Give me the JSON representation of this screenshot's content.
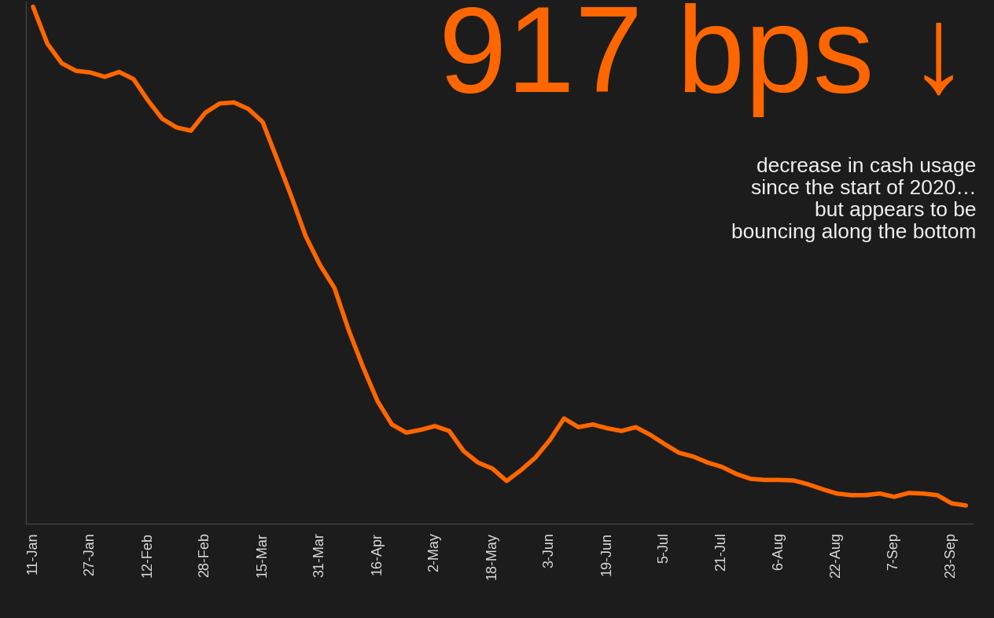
{
  "chart_data": {
    "type": "line",
    "title": "917 bps ↓",
    "annotation": "decrease in cash usage\nsince the start of 2020…\nbut appears to be\nbouncing along the bottom",
    "categories": [
      "11-Jan",
      null,
      null,
      null,
      "27-Jan",
      null,
      null,
      null,
      "12-Feb",
      null,
      null,
      null,
      "28-Feb",
      null,
      null,
      null,
      "15-Mar",
      null,
      null,
      null,
      "31-Mar",
      null,
      null,
      null,
      "16-Apr",
      null,
      null,
      null,
      "2-May",
      null,
      null,
      null,
      "18-May",
      null,
      null,
      null,
      "3-Jun",
      null,
      null,
      null,
      "19-Jun",
      null,
      null,
      null,
      "5-Jul",
      null,
      null,
      null,
      "21-Jul",
      null,
      null,
      null,
      "6-Aug",
      null,
      null,
      null,
      "22-Aug",
      null,
      null,
      null,
      "7-Sep",
      null,
      null,
      null,
      "23-Sep",
      null
    ],
    "values": [
      0,
      -68,
      -104,
      -118,
      -121,
      -129,
      -120,
      -133,
      -172,
      -206,
      -222,
      -228,
      -195,
      -178,
      -176,
      -188,
      -212,
      -280,
      -349,
      -422,
      -475,
      -517,
      -595,
      -663,
      -725,
      -768,
      -783,
      -778,
      -771,
      -780,
      -817,
      -838,
      -849,
      -872,
      -852,
      -829,
      -797,
      -757,
      -773,
      -768,
      -775,
      -780,
      -773,
      -787,
      -804,
      -820,
      -827,
      -838,
      -846,
      -859,
      -868,
      -870,
      -870,
      -871,
      -878,
      -887,
      -895,
      -898,
      -898,
      -895,
      -901,
      -894,
      -895,
      -898,
      -913,
      -917
    ],
    "color": "#ff6600",
    "ylim": [
      -950,
      10
    ],
    "yticks": [],
    "tick_labels": "x",
    "grid": false
  }
}
